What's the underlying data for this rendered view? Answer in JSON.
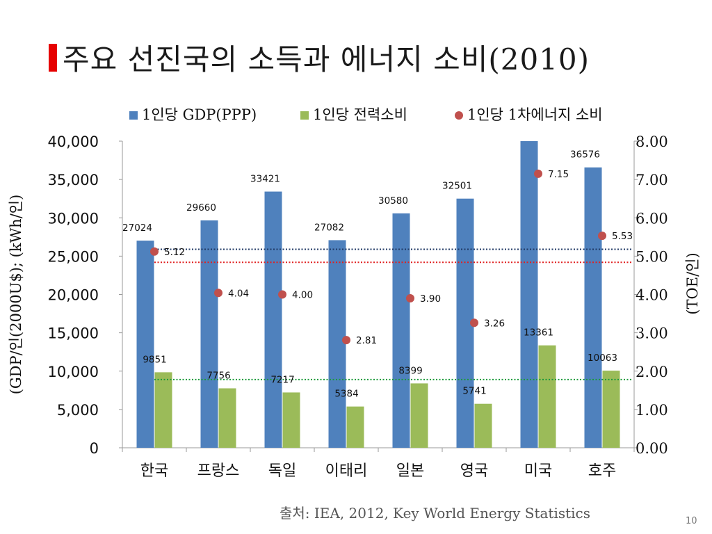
{
  "slide": {
    "title": "주요 선진국의 소득과 에너지 소비(2010)",
    "source": "출처: IEA, 2012, Key World Energy Statistics",
    "page_number": "10"
  },
  "colors": {
    "gdp": "#4f81bd",
    "elec": "#9bbb59",
    "toe": "#c0504d",
    "title_accent": "#e60000"
  },
  "chart_data": {
    "type": "bar",
    "categories": [
      "한국",
      "프랑스",
      "독일",
      "이태리",
      "일본",
      "영국",
      "미국",
      "호주"
    ],
    "series": [
      {
        "name": "1인당 GDP(PPP)",
        "type": "bar",
        "axis": "left",
        "values": [
          27024,
          29660,
          33421,
          27082,
          30580,
          32501,
          42000,
          36576
        ],
        "labels": [
          "27024",
          "29660",
          "33421",
          "27082",
          "30580",
          "32501",
          "",
          "36576"
        ]
      },
      {
        "name": "1인당 전력소비",
        "type": "bar",
        "axis": "left",
        "values": [
          9851,
          7756,
          7217,
          5384,
          8399,
          5741,
          13361,
          10063
        ],
        "labels": [
          "9851",
          "7756",
          "7217",
          "5384",
          "8399",
          "5741",
          "13361",
          "10063"
        ]
      },
      {
        "name": "1인당 1차에너지 소비",
        "type": "scatter",
        "axis": "right",
        "values": [
          5.12,
          4.04,
          4.0,
          2.81,
          3.9,
          3.26,
          7.15,
          5.53
        ],
        "labels": [
          "5.12",
          "4.04",
          "4.00",
          "2.81",
          "3.90",
          "3.26",
          "7.15",
          "5.53"
        ]
      }
    ],
    "reference_lines": [
      {
        "axis": "left",
        "value": 25900,
        "color": "#1f3864",
        "style": "dotted"
      },
      {
        "axis": "left",
        "value": 24200,
        "color": "#e02020",
        "style": "dotted"
      },
      {
        "axis": "left",
        "value": 8900,
        "color": "#1a9a3a",
        "style": "dotted"
      }
    ],
    "ylabel": "(GDP/인(2000U$); (kWh/인)",
    "y2label": "(TOE/인)",
    "ylim": [
      0,
      40000
    ],
    "y2lim": [
      0,
      8
    ],
    "yticks": [
      "0",
      "5,000",
      "10,000",
      "15,000",
      "20,000",
      "25,000",
      "30,000",
      "35,000",
      "40,000"
    ],
    "y2ticks": [
      "0.00",
      "1.00",
      "2.00",
      "3.00",
      "4.00",
      "5.00",
      "6.00",
      "7.00",
      "8.00"
    ],
    "legend_position": "top"
  }
}
